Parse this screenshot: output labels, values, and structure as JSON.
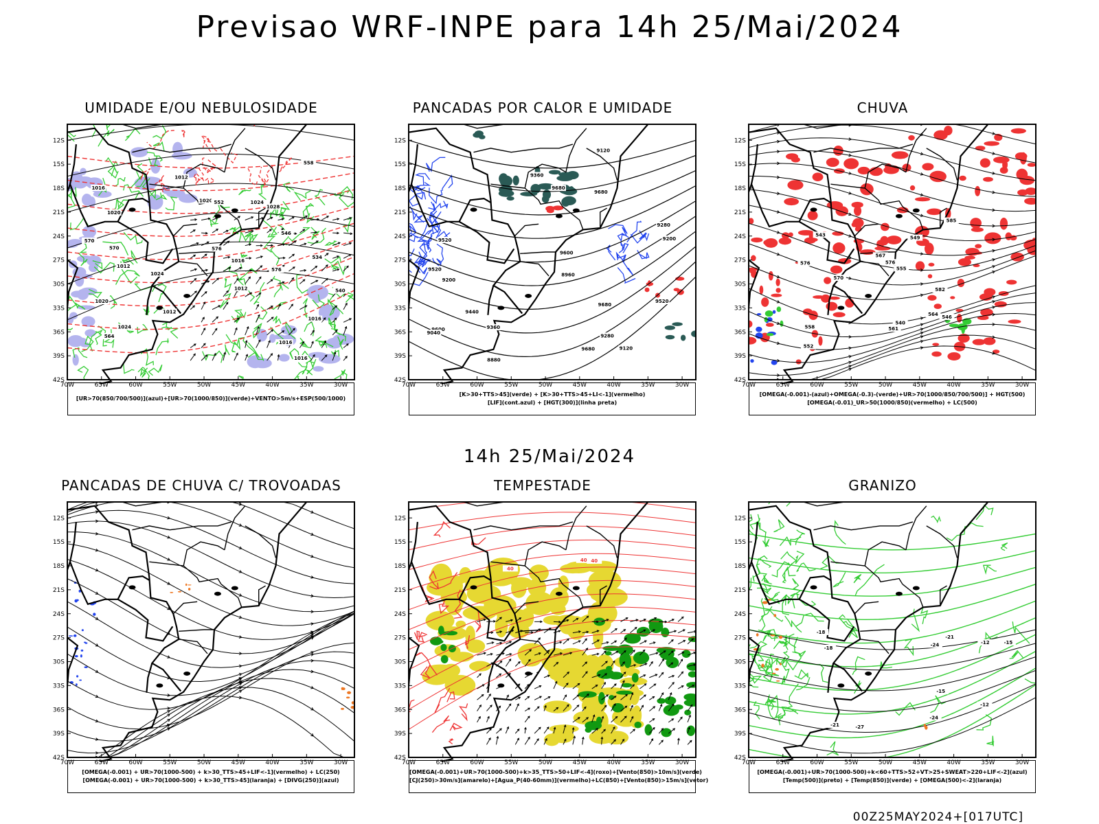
{
  "title": "Previsao WRF-INPE  para 14h 25/Mai/2024",
  "mid_title": "14h 25/Mai/2024",
  "footer": "00Z25MAY2024+[017UTC]",
  "axes": {
    "lat_labels": [
      "12S",
      "15S",
      "18S",
      "21S",
      "24S",
      "27S",
      "30S",
      "33S",
      "36S",
      "39S",
      "42S"
    ],
    "lon_labels": [
      "70W",
      "65W",
      "60W",
      "55W",
      "50W",
      "45W",
      "40W",
      "35W",
      "30W"
    ]
  },
  "panels": [
    {
      "title": "UMIDADE E/OU NEBULOSIDADE",
      "legend": [
        "[UR>70(850/700/500)](azul)+[UR>70(1000/850)](verde)+VENTO>5m/s+ESP(500/1000)"
      ],
      "contour_labels": [
        "1016",
        "1012",
        "1012",
        "1016",
        "1016",
        "1020",
        "1024",
        "1024",
        "1028",
        "1020",
        "1024",
        "1016",
        "1012",
        "1012",
        "1016",
        "1020",
        "576",
        "576",
        "570",
        "564",
        "558",
        "552",
        "546",
        "540",
        "534",
        "570"
      ]
    },
    {
      "title": "PANCADAS POR CALOR E UMIDADE",
      "legend": [
        "[K>30+TTS>45](verde) + [K>30+TTS>45+LI<-1](vermelho)",
        "[LIF](cont.azul) + [HGT(300)](linha preta)"
      ],
      "contour_labels": [
        "9680",
        "9680",
        "9680",
        "9600",
        "9600",
        "9520",
        "9520",
        "9440",
        "9360",
        "9360",
        "9280",
        "9280",
        "9200",
        "9200",
        "9120",
        "9120",
        "9040",
        "8960",
        "8880",
        "9520",
        "9680"
      ]
    },
    {
      "title": "CHUVA",
      "legend": [
        "[OMEGA(-0.001)-(azul)+OMEGA(-0.3)-(verde)+UR>70(1000/850/700/500)] + HGT(500)",
        "[OMEGA(-0.01)_UR>50(1000/850)(vermelho) + LC(500)"
      ],
      "contour_labels": [
        "582",
        "576",
        "576",
        "570",
        "567",
        "564",
        "561",
        "558",
        "555",
        "552",
        "549",
        "546",
        "543",
        "540",
        "585"
      ]
    },
    {
      "title": "PANCADAS DE CHUVA C/ TROVOADAS",
      "legend": [
        "[OMEGA(-0.001) + UR>70(1000-500) + k>30_TTS>45+LIF<-1](vermelho) + LC(250)",
        "[OMEGA(-0.001) + UR>70(1000-500) + k>30_TTS>45](laranja) + [DIVG(250)](azul)"
      ],
      "contour_labels": []
    },
    {
      "title": "TEMPESTADE",
      "legend": [
        "[OMEGA(-0.001)+UR>70(1000-500)+k>35_TTS>50+LIF<-4](roxo)+[Vento(850)>10m/s](verde)",
        "[CJ(250)>30m/s](amarelo)+[Agua_P(40-60mm)](vermelho)+LC(850)+[Vento(850)>15m/s](vetor)"
      ],
      "contour_labels": [
        "40",
        "40",
        "40"
      ]
    },
    {
      "title": "GRANIZO",
      "legend": [
        "[OMEGA(-0.001)+UR>70(1000-500)+k<60+TTS>52+VT>25+SWEAT>220+LIF<-2](azul)",
        "[Temp(500)](preto) + [Temp(850)](verde) + [OMEGA(500)<-2](laranja)"
      ],
      "contour_labels": [
        "-15",
        "-18",
        "-21",
        "-24",
        "-27",
        "-24",
        "-21",
        "-18",
        "-15",
        "-12",
        "-12"
      ]
    }
  ],
  "colors": {
    "blue": "#2244ee",
    "green": "#33cc33",
    "red": "#ee3333",
    "orange": "#ee7722",
    "yellow": "#e6d832",
    "lavender": "#b4b4ee",
    "darkteal": "#2a5a55",
    "darkgreen": "#119911"
  }
}
